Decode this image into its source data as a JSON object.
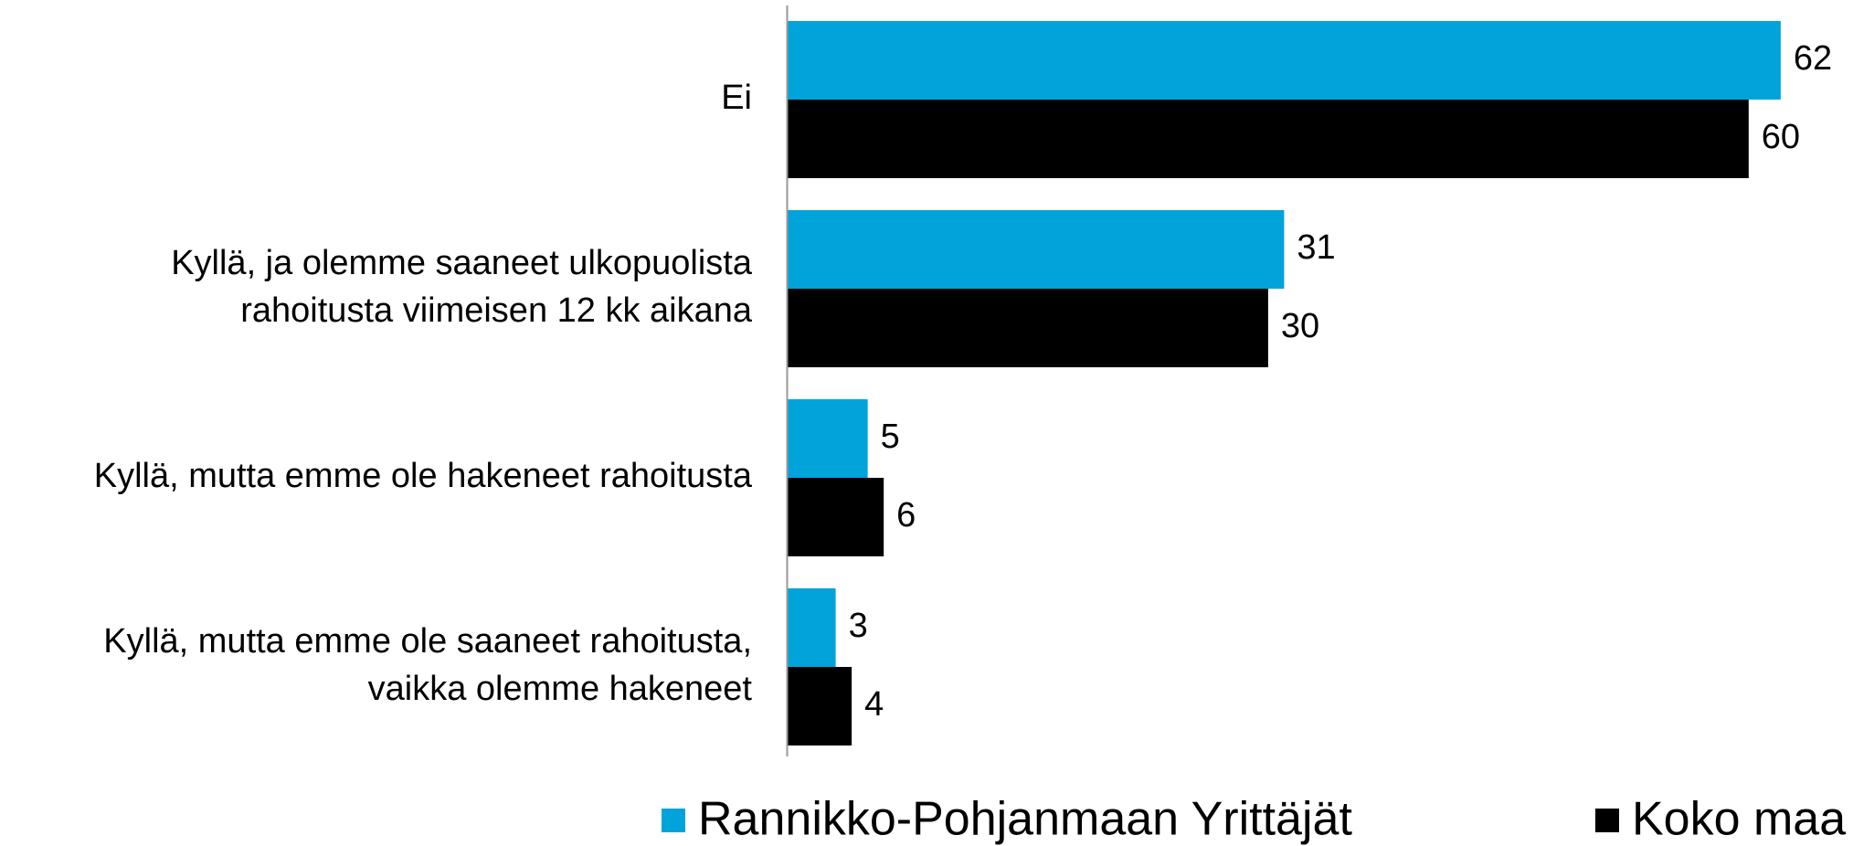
{
  "chart_data": {
    "type": "bar",
    "orientation": "horizontal",
    "categories": [
      [
        "Ei"
      ],
      [
        "Kyllä, ja olemme saaneet ulkopuolista",
        "rahoitusta viimeisen 12 kk aikana"
      ],
      [
        "Kyllä, mutta emme ole hakeneet rahoitusta"
      ],
      [
        "Kyllä, mutta emme ole saaneet rahoitusta,",
        "vaikka olemme hakeneet"
      ]
    ],
    "series": [
      {
        "name": "Rannikko-Pohjanmaan Yrittäjät",
        "color": "#00a3da",
        "values": [
          62,
          31,
          5,
          3
        ]
      },
      {
        "name": "Koko maa",
        "color": "#000000",
        "values": [
          60,
          30,
          6,
          4
        ]
      }
    ],
    "legend": "bottom"
  }
}
